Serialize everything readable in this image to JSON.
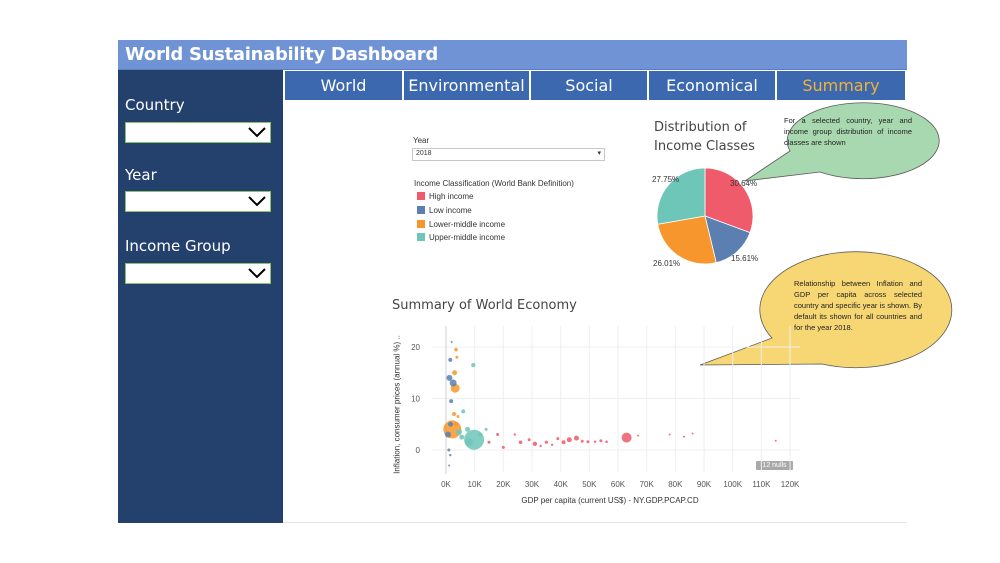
{
  "header": {
    "title": "World Sustainability Dashboard"
  },
  "sidebar": {
    "filters": [
      {
        "label": "Country",
        "value": ""
      },
      {
        "label": "Year",
        "value": ""
      },
      {
        "label": "Income Group",
        "value": ""
      }
    ]
  },
  "tabs": [
    {
      "label": "World",
      "active": false
    },
    {
      "label": "Environmental",
      "active": false
    },
    {
      "label": "Social",
      "active": false
    },
    {
      "label": "Economical",
      "active": false
    },
    {
      "label": "Summary",
      "active": true
    }
  ],
  "colors": {
    "title_bar": "#6f93d4",
    "sidebar": "#24416e",
    "tab": "#3c68b0",
    "tab_active_text": "#f3b234",
    "high_income": "#ef5b6b",
    "low_income": "#5b7fb0",
    "lower_middle_income": "#f7962c",
    "upper_middle_income": "#6dc6b8"
  },
  "year_filter": {
    "label": "Year",
    "value": "2018"
  },
  "legend": {
    "title": "Income Classification (World Bank Definition)",
    "items": [
      {
        "label": "High income",
        "color": "#ef5b6b"
      },
      {
        "label": "Low income",
        "color": "#5b7fb0"
      },
      {
        "label": "Lower-middle income",
        "color": "#f7962c"
      },
      {
        "label": "Upper-middle income",
        "color": "#6dc6b8"
      }
    ]
  },
  "callouts": {
    "pie": "For a selected country, year and income group distribution of income classes are shown",
    "scatter": "Relationship between Inflation and GDP per capita across selected country and specific year is shown. By default its shown for all countries and for the year 2018."
  },
  "chart_data": [
    {
      "type": "pie",
      "title": "Distribution of Income Classes",
      "slices": [
        {
          "name": "High income",
          "value": 30.64,
          "label": "30.64%",
          "color": "#ef5b6b"
        },
        {
          "name": "Low income",
          "value": 15.61,
          "label": "15.61%",
          "color": "#5b7fb0"
        },
        {
          "name": "Lower-middle income",
          "value": 26.01,
          "label": "26.01%",
          "color": "#f7962c"
        },
        {
          "name": "Upper-middle income",
          "value": 27.75,
          "label": "27.75%",
          "color": "#6dc6b8"
        }
      ]
    },
    {
      "type": "scatter",
      "title": "Summary of World Economy",
      "xlabel": "GDP per capita (current US$) - NY.GDP.PCAP.CD",
      "ylabel": "Inflation, consumer prices (annual %) ..",
      "xlim": [
        0,
        120000
      ],
      "ylim": [
        -4,
        24
      ],
      "x_ticks": [
        "0K",
        "10K",
        "20K",
        "30K",
        "40K",
        "50K",
        "60K",
        "70K",
        "80K",
        "90K",
        "100K",
        "110K",
        "120K"
      ],
      "y_ticks": [
        "0",
        "10",
        "20"
      ],
      "nulls_label": "12 nulls",
      "points": [
        {
          "x": 2000,
          "y": 21,
          "r": 1,
          "g": "low"
        },
        {
          "x": 3500,
          "y": 19.5,
          "r": 1.8,
          "g": "lm"
        },
        {
          "x": 3800,
          "y": 18,
          "r": 1.5,
          "g": "lm"
        },
        {
          "x": 1500,
          "y": 17.5,
          "r": 2,
          "g": "low"
        },
        {
          "x": 9500,
          "y": 16.5,
          "r": 2.2,
          "g": "um"
        },
        {
          "x": 3000,
          "y": 15,
          "r": 2.5,
          "g": "lm"
        },
        {
          "x": 1200,
          "y": 14,
          "r": 3,
          "g": "low"
        },
        {
          "x": 2500,
          "y": 13,
          "r": 3.5,
          "g": "low"
        },
        {
          "x": 3200,
          "y": 12,
          "r": 4.5,
          "g": "lm"
        },
        {
          "x": 1800,
          "y": 9.5,
          "r": 2,
          "g": "low"
        },
        {
          "x": 2800,
          "y": 7,
          "r": 2,
          "g": "lm"
        },
        {
          "x": 6000,
          "y": 7.5,
          "r": 2,
          "g": "um"
        },
        {
          "x": 4200,
          "y": 6.5,
          "r": 1.5,
          "g": "lm"
        },
        {
          "x": 1600,
          "y": 5,
          "r": 2.5,
          "g": "low"
        },
        {
          "x": 3500,
          "y": 5,
          "r": 2,
          "g": "lm"
        },
        {
          "x": 2200,
          "y": 4,
          "r": 9,
          "g": "lm"
        },
        {
          "x": 700,
          "y": 3,
          "r": 3,
          "g": "low"
        },
        {
          "x": 4500,
          "y": 3.5,
          "r": 3,
          "g": "um"
        },
        {
          "x": 7500,
          "y": 4,
          "r": 2.5,
          "g": "um"
        },
        {
          "x": 9800,
          "y": 2,
          "r": 10,
          "g": "um"
        },
        {
          "x": 8000,
          "y": 1.5,
          "r": 4,
          "g": "um"
        },
        {
          "x": 5500,
          "y": 2.5,
          "r": 2.5,
          "g": "um"
        },
        {
          "x": 12000,
          "y": 3,
          "r": 2,
          "g": "um"
        },
        {
          "x": 14000,
          "y": 4,
          "r": 1.5,
          "g": "um"
        },
        {
          "x": 15000,
          "y": 1.5,
          "r": 1.5,
          "g": "high"
        },
        {
          "x": 18000,
          "y": 3,
          "r": 1.5,
          "g": "high"
        },
        {
          "x": 20000,
          "y": 0.5,
          "r": 1.5,
          "g": "high"
        },
        {
          "x": 24000,
          "y": 3,
          "r": 1.2,
          "g": "high"
        },
        {
          "x": 26000,
          "y": 1.5,
          "r": 1.8,
          "g": "high"
        },
        {
          "x": 29000,
          "y": 2,
          "r": 1.5,
          "g": "high"
        },
        {
          "x": 31000,
          "y": 1.2,
          "r": 2.2,
          "g": "high"
        },
        {
          "x": 33000,
          "y": 0.8,
          "r": 1.2,
          "g": "high"
        },
        {
          "x": 35000,
          "y": 1.5,
          "r": 1.6,
          "g": "high"
        },
        {
          "x": 37000,
          "y": 1,
          "r": 1.2,
          "g": "high"
        },
        {
          "x": 39000,
          "y": 2.2,
          "r": 1.5,
          "g": "high"
        },
        {
          "x": 41000,
          "y": 1.5,
          "r": 2,
          "g": "high"
        },
        {
          "x": 43000,
          "y": 2,
          "r": 2.5,
          "g": "high"
        },
        {
          "x": 45500,
          "y": 2.3,
          "r": 2.5,
          "g": "high"
        },
        {
          "x": 47500,
          "y": 1.7,
          "r": 1.5,
          "g": "high"
        },
        {
          "x": 49500,
          "y": 1.6,
          "r": 1.5,
          "g": "high"
        },
        {
          "x": 52000,
          "y": 1.6,
          "r": 1.2,
          "g": "high"
        },
        {
          "x": 54000,
          "y": 1.8,
          "r": 1.5,
          "g": "high"
        },
        {
          "x": 56000,
          "y": 1.6,
          "r": 1.3,
          "g": "high"
        },
        {
          "x": 63000,
          "y": 2.4,
          "r": 5,
          "g": "high"
        },
        {
          "x": 67000,
          "y": 2.8,
          "r": 1,
          "g": "high"
        },
        {
          "x": 78000,
          "y": 3,
          "r": 1,
          "g": "high"
        },
        {
          "x": 83000,
          "y": 2.6,
          "r": 1,
          "g": "high"
        },
        {
          "x": 86000,
          "y": 3.2,
          "r": 1,
          "g": "high"
        },
        {
          "x": 115000,
          "y": 1.8,
          "r": 1,
          "g": "high"
        },
        {
          "x": 1000,
          "y": 0,
          "r": 1.5,
          "g": "low"
        },
        {
          "x": 1500,
          "y": -1,
          "r": 1.2,
          "g": "low"
        },
        {
          "x": 1100,
          "y": -3,
          "r": 1,
          "g": "low"
        }
      ]
    }
  ]
}
